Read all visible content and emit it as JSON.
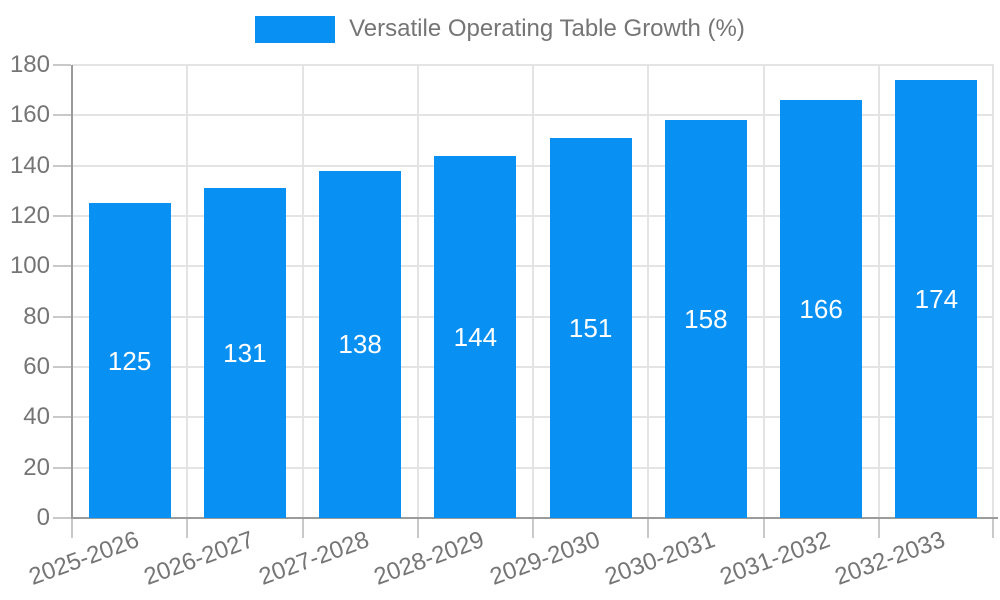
{
  "legend": {
    "label": "Versatile Operating Table Growth (%)"
  },
  "chart_data": {
    "type": "bar",
    "title": "Versatile Operating Table Growth (%)",
    "categories": [
      "2025-2026",
      "2026-2027",
      "2027-2028",
      "2028-2029",
      "2029-2030",
      "2030-2031",
      "2031-2032",
      "2032-2033"
    ],
    "values": [
      125,
      131,
      138,
      144,
      151,
      158,
      166,
      174
    ],
    "xlabel": "",
    "ylabel": "",
    "ylim": [
      0,
      180
    ],
    "ytick_step": 20,
    "yticks": [
      0,
      20,
      40,
      60,
      80,
      100,
      120,
      140,
      160,
      180
    ],
    "grid": true,
    "legend_position": "top-center",
    "x_tick_rotation_deg": -20,
    "value_labels": "inside-center"
  },
  "colors": {
    "bar": "#0990f3",
    "text": "#757575",
    "grid": "#e4e4e4",
    "axis": "#9b9b9b",
    "tick": "#c9c9c9",
    "value_label": "#ffffff",
    "background": "#ffffff"
  }
}
